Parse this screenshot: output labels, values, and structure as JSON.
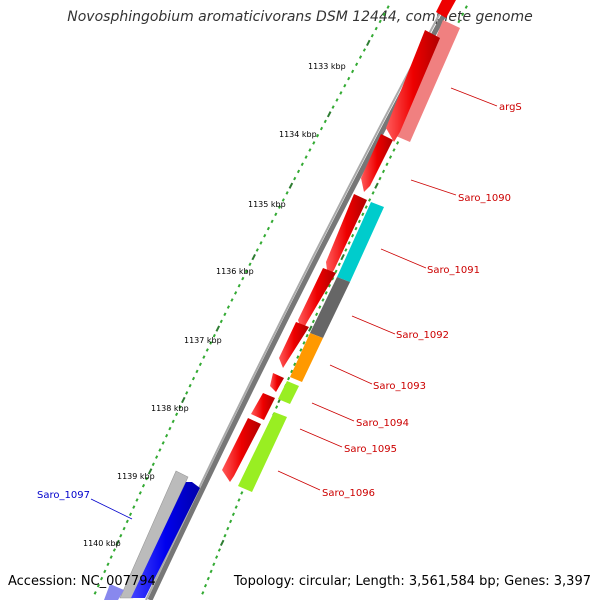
{
  "title": "Novosphingobium aromaticivorans DSM 12444, complete genome",
  "footer": {
    "accession": "Accession: NC_007794",
    "summary": "Topology: circular; Length: 3,561,584 bp; Genes: 3,397"
  },
  "ticks": [
    {
      "label": "1133 kbp"
    },
    {
      "label": "1134 kbp"
    },
    {
      "label": "1135 kbp"
    },
    {
      "label": "1136 kbp"
    },
    {
      "label": "1137 kbp"
    },
    {
      "label": "1138 kbp"
    },
    {
      "label": "1139 kbp"
    },
    {
      "label": "1140 kbp"
    }
  ],
  "gene_labels": [
    {
      "name": "argS",
      "color": "#cc0000"
    },
    {
      "name": "Saro_1090",
      "color": "#cc0000"
    },
    {
      "name": "Saro_1091",
      "color": "#cc0000"
    },
    {
      "name": "Saro_1092",
      "color": "#cc0000"
    },
    {
      "name": "Saro_1093",
      "color": "#cc0000"
    },
    {
      "name": "Saro_1094",
      "color": "#cc0000"
    },
    {
      "name": "Saro_1095",
      "color": "#cc0000"
    },
    {
      "name": "Saro_1096",
      "color": "#cc0000"
    },
    {
      "name": "Saro_1097",
      "color": "#0000cc"
    }
  ],
  "colors": {
    "cds_forward": "#ee0000",
    "cds_reverse": "#0000ee",
    "backbone": "#777777",
    "tick_major": "#2e7d32",
    "tick_minor": "#33aa33",
    "argS_product": "#f08080",
    "saro_1091_product": "#00cccc",
    "saro_1092_product": "#666666",
    "saro_1093_product": "#ff9900",
    "saro_1094_product": "#99ee22",
    "saro_1097_product": "#bbbbbb"
  }
}
